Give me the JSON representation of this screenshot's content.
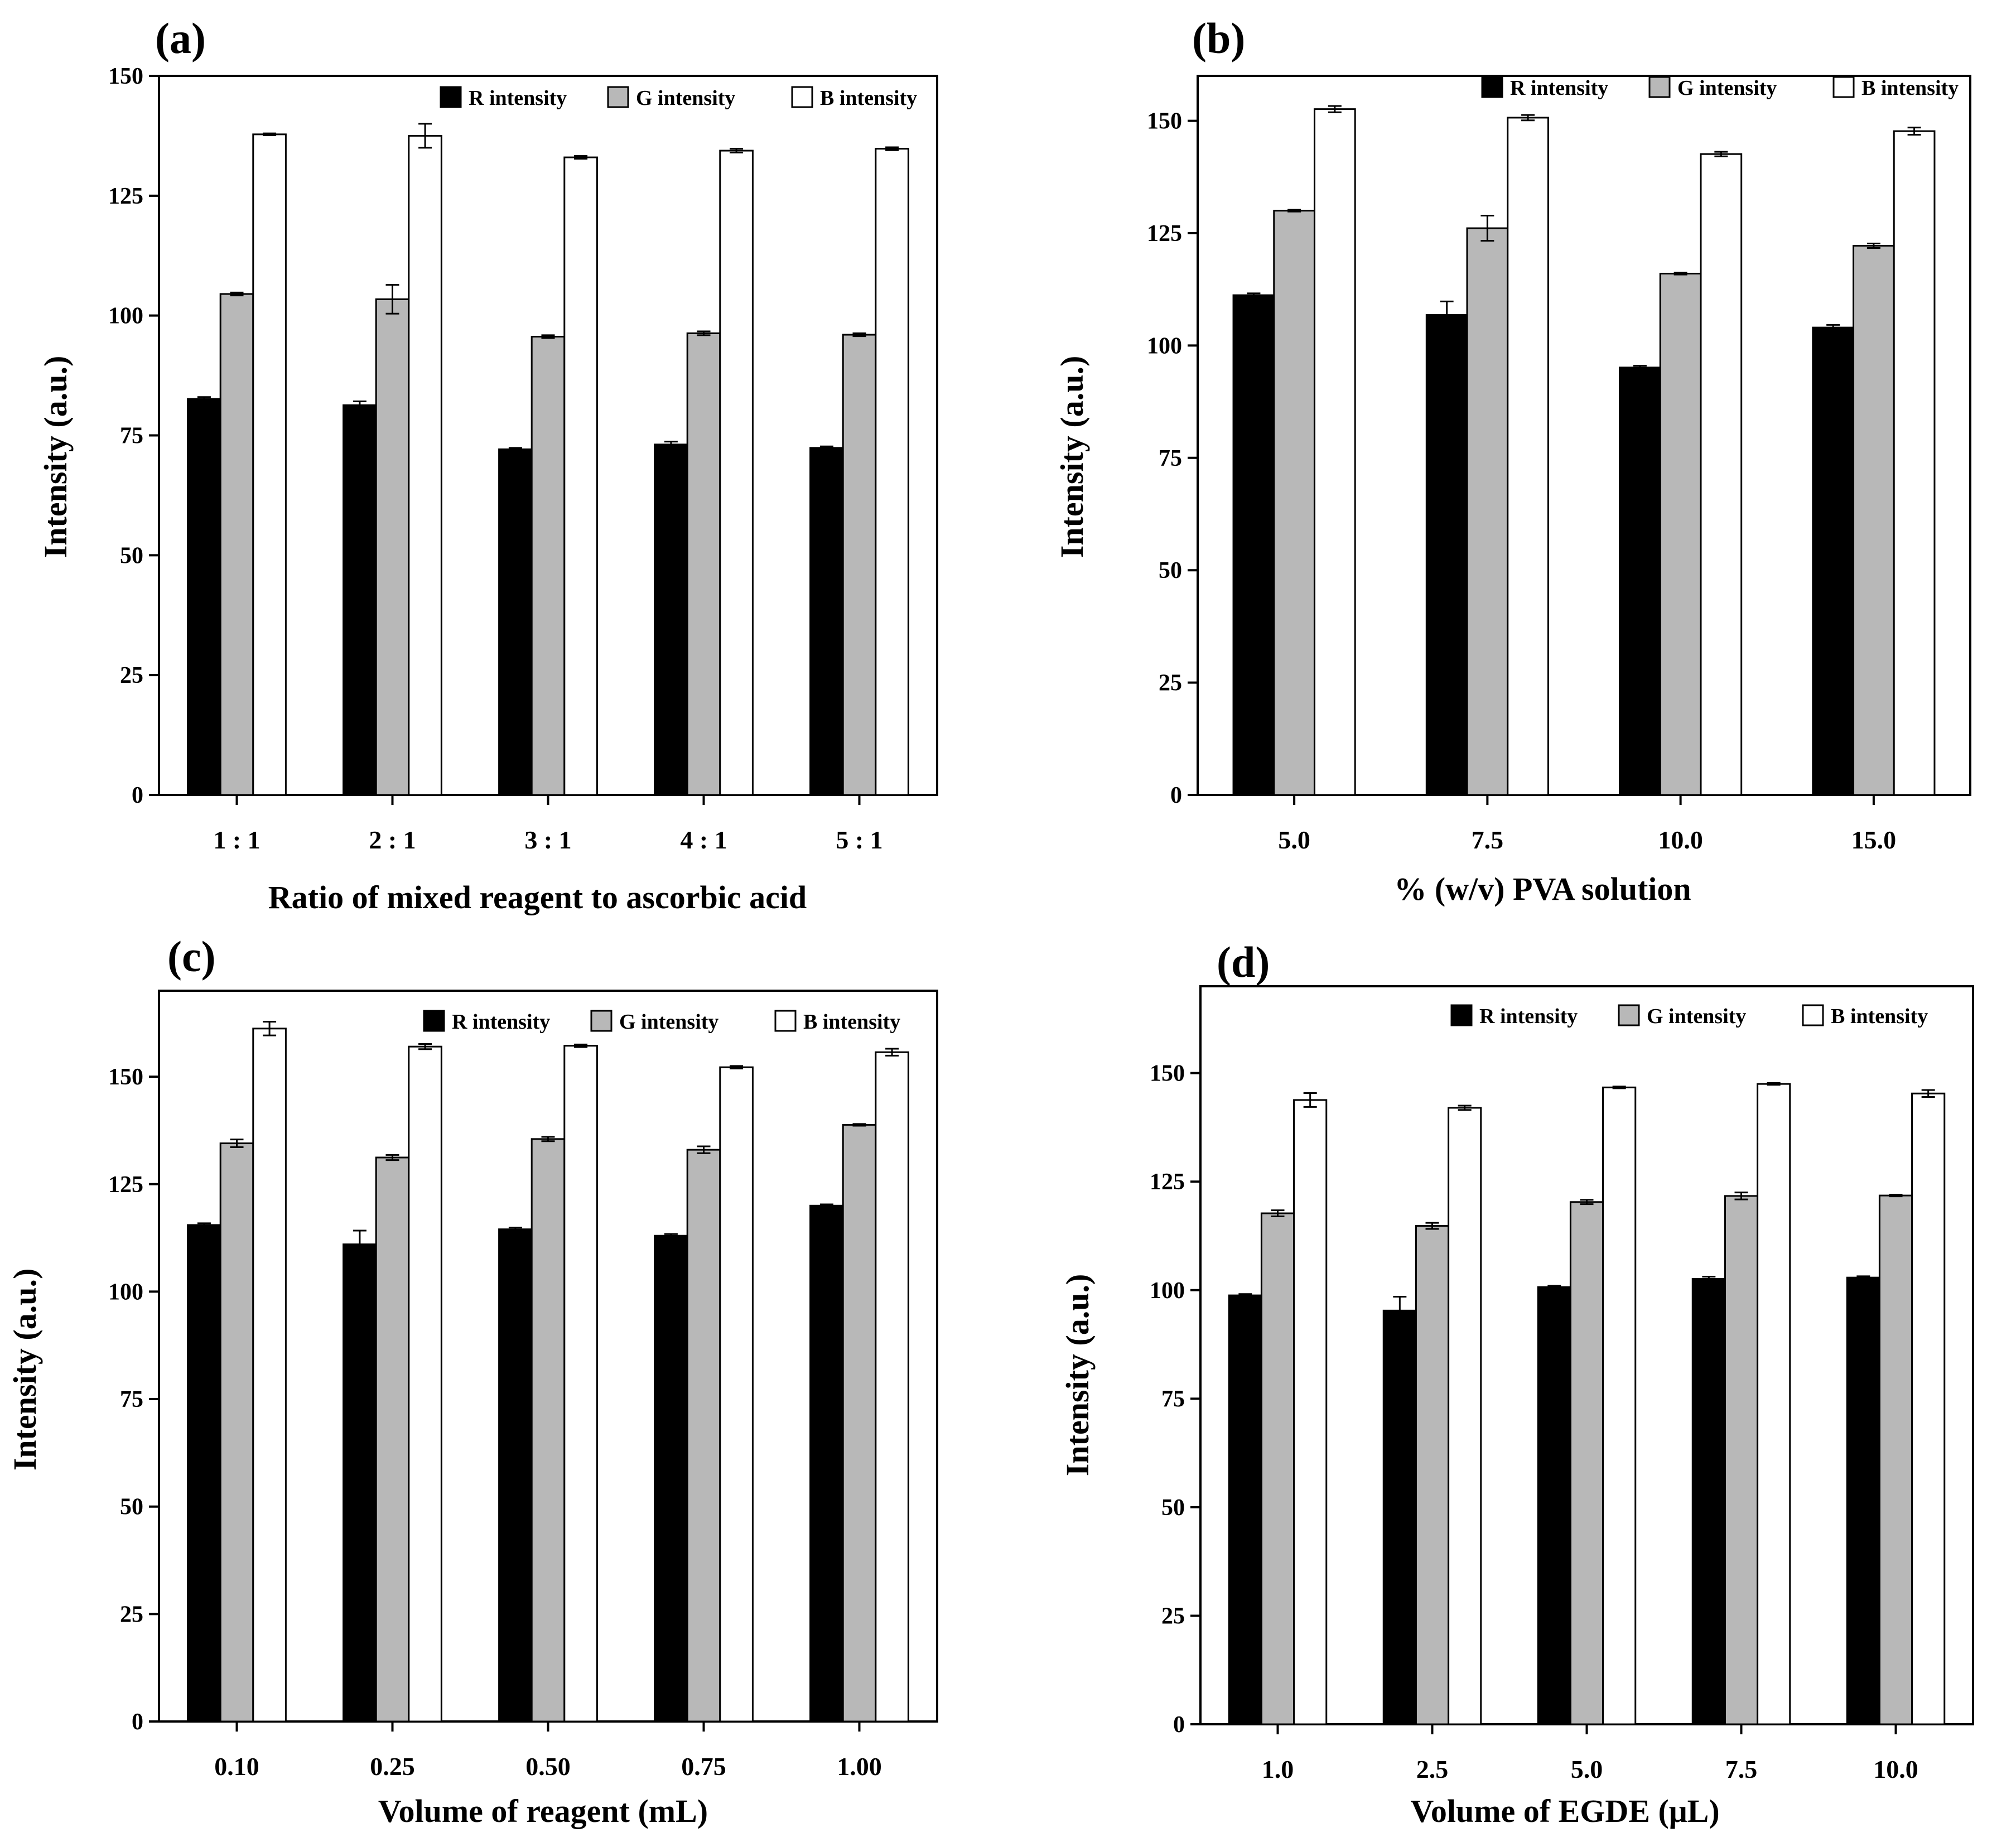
{
  "colors": {
    "R": "#000000",
    "G": "#b8b8b8",
    "B": "#ffffff",
    "axis": "#000000"
  },
  "legend_labels": [
    "R intensity",
    "G intensity",
    "B intensity"
  ],
  "chart_data": [
    {
      "id": "a",
      "panel_label": "(a)",
      "type": "bar",
      "title": "",
      "xlabel": "Ratio of mixed reagent to ascorbic acid",
      "ylabel": "Intensity (a.u.)",
      "ylim": [
        0,
        150
      ],
      "yticks": [
        0,
        25,
        50,
        75,
        100,
        125,
        150
      ],
      "categories": [
        "1 : 1",
        "2 : 1",
        "3 : 1",
        "4 : 1",
        "5 : 1"
      ],
      "legend": "top-right",
      "series": [
        {
          "name": "R intensity",
          "values": [
            82.6,
            81.3,
            72.1,
            73.1,
            72.4
          ],
          "errors": [
            0.4,
            0.8,
            0.3,
            0.6,
            0.3
          ]
        },
        {
          "name": "G intensity",
          "values": [
            104.5,
            103.4,
            95.6,
            96.3,
            96.0
          ],
          "errors": [
            0.3,
            3.0,
            0.3,
            0.4,
            0.3
          ]
        },
        {
          "name": "B intensity",
          "values": [
            137.8,
            137.5,
            133.0,
            134.4,
            134.8
          ],
          "errors": [
            0.2,
            2.5,
            0.3,
            0.4,
            0.3
          ]
        }
      ]
    },
    {
      "id": "b",
      "panel_label": "(b)",
      "type": "bar",
      "title": "",
      "xlabel": "% (w/v) PVA solution",
      "ylabel": "Intensity (a.u.)",
      "ylim": [
        0,
        160
      ],
      "yticks": [
        0,
        25,
        50,
        75,
        100,
        125,
        150
      ],
      "categories": [
        "5.0",
        "7.5",
        "10.0",
        "15.0"
      ],
      "legend": "top-right",
      "series": [
        {
          "name": "R intensity",
          "values": [
            111.2,
            106.8,
            95.1,
            104.0
          ],
          "errors": [
            0.4,
            3.0,
            0.4,
            0.6
          ]
        },
        {
          "name": "G intensity",
          "values": [
            130.0,
            126.1,
            116.0,
            122.2
          ],
          "errors": [
            0.2,
            2.8,
            0.2,
            0.5
          ]
        },
        {
          "name": "B intensity",
          "values": [
            152.6,
            150.7,
            142.6,
            147.7
          ],
          "errors": [
            0.7,
            0.6,
            0.5,
            0.8
          ]
        }
      ]
    },
    {
      "id": "c",
      "panel_label": "(c)",
      "type": "bar",
      "title": "",
      "xlabel": "Volume of reagent (mL)",
      "ylabel": "Intensity (a.u.)",
      "ylim": [
        0,
        170
      ],
      "yticks": [
        0,
        25,
        50,
        75,
        100,
        125,
        150
      ],
      "categories": [
        "0.10",
        "0.25",
        "0.50",
        "0.75",
        "1.00"
      ],
      "legend": "top-right",
      "series": [
        {
          "name": "R intensity",
          "values": [
            115.5,
            111.0,
            114.5,
            113.0,
            120.0
          ],
          "errors": [
            0.4,
            3.2,
            0.4,
            0.4,
            0.3
          ]
        },
        {
          "name": "G intensity",
          "values": [
            134.5,
            131.2,
            135.5,
            133.0,
            138.8
          ],
          "errors": [
            0.9,
            0.6,
            0.5,
            0.8,
            0.2
          ]
        },
        {
          "name": "B intensity",
          "values": [
            161.2,
            157.0,
            157.2,
            152.2,
            155.7
          ],
          "errors": [
            1.6,
            0.6,
            0.3,
            0.3,
            0.8
          ]
        }
      ]
    },
    {
      "id": "d",
      "panel_label": "(d)",
      "type": "bar",
      "title": "",
      "xlabel": "Volume of EGDE (μL)",
      "ylabel": "Intensity (a.u.)",
      "ylim": [
        0,
        170
      ],
      "yticks": [
        0,
        25,
        50,
        75,
        100,
        125,
        150
      ],
      "categories": [
        "1.0",
        "2.5",
        "5.0",
        "7.5",
        "10.0"
      ],
      "legend": "top-right",
      "series": [
        {
          "name": "R intensity",
          "values": [
            98.8,
            95.3,
            100.7,
            102.6,
            102.9
          ],
          "errors": [
            0.3,
            3.2,
            0.3,
            0.5,
            0.3
          ]
        },
        {
          "name": "G intensity",
          "values": [
            117.7,
            114.8,
            120.3,
            121.7,
            121.8
          ],
          "errors": [
            0.7,
            0.7,
            0.5,
            0.8,
            0.2
          ]
        },
        {
          "name": "B intensity",
          "values": [
            143.8,
            142.0,
            146.7,
            147.5,
            145.3
          ],
          "errors": [
            1.6,
            0.5,
            0.2,
            0.2,
            0.8
          ]
        }
      ]
    }
  ]
}
